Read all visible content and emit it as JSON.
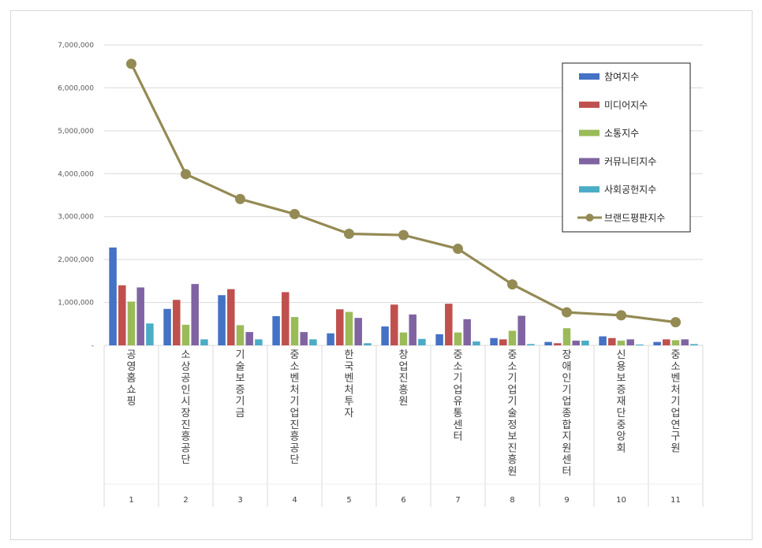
{
  "chart_data": {
    "type": "bar",
    "title": "",
    "xlabel": "",
    "ylabel": "",
    "ylim": [
      0,
      7000000
    ],
    "yticks": [
      0,
      1000000,
      2000000,
      3000000,
      4000000,
      5000000,
      6000000,
      7000000
    ],
    "ytick_labels": [
      "-",
      "1,000,000",
      "2,000,000",
      "3,000,000",
      "4,000,000",
      "5,000,000",
      "6,000,000",
      "7,000,000"
    ],
    "grid": true,
    "legend_position": "top-right",
    "categories": [
      "공영홈쇼핑",
      "소상공인시장진흥공단",
      "기술보증기금",
      "중소벤처기업진흥공단",
      "한국벤처투자",
      "창업진흥원",
      "중소기업유통센터",
      "중소기업기술정보진흥원",
      "장애인기업종합지원센터",
      "신용보증재단중앙회",
      "중소벤처기업연구원"
    ],
    "ranks": [
      "1",
      "2",
      "3",
      "4",
      "5",
      "6",
      "7",
      "8",
      "9",
      "10",
      "11"
    ],
    "series": [
      {
        "name": "참여지수",
        "kind": "bar",
        "color": "#4472C4",
        "values": [
          2280000,
          850000,
          1170000,
          680000,
          280000,
          440000,
          260000,
          170000,
          80000,
          210000,
          80000
        ]
      },
      {
        "name": "미디어지수",
        "kind": "bar",
        "color": "#C0504D",
        "values": [
          1400000,
          1060000,
          1310000,
          1240000,
          840000,
          950000,
          970000,
          140000,
          50000,
          170000,
          140000
        ]
      },
      {
        "name": "소통지수",
        "kind": "bar",
        "color": "#9BBB59",
        "values": [
          1020000,
          480000,
          470000,
          660000,
          780000,
          300000,
          300000,
          340000,
          400000,
          110000,
          120000
        ]
      },
      {
        "name": "커뮤니티지수",
        "kind": "bar",
        "color": "#8064A2",
        "values": [
          1350000,
          1430000,
          310000,
          310000,
          640000,
          720000,
          610000,
          690000,
          110000,
          140000,
          140000
        ]
      },
      {
        "name": "사회공헌지수",
        "kind": "bar",
        "color": "#4BACC6",
        "values": [
          510000,
          140000,
          140000,
          140000,
          50000,
          150000,
          90000,
          30000,
          110000,
          20000,
          30000
        ]
      },
      {
        "name": "브랜드평판지수",
        "kind": "line",
        "color": "#948A54",
        "values": [
          6560000,
          3990000,
          3410000,
          3060000,
          2600000,
          2570000,
          2250000,
          1420000,
          770000,
          700000,
          540000
        ]
      }
    ]
  }
}
